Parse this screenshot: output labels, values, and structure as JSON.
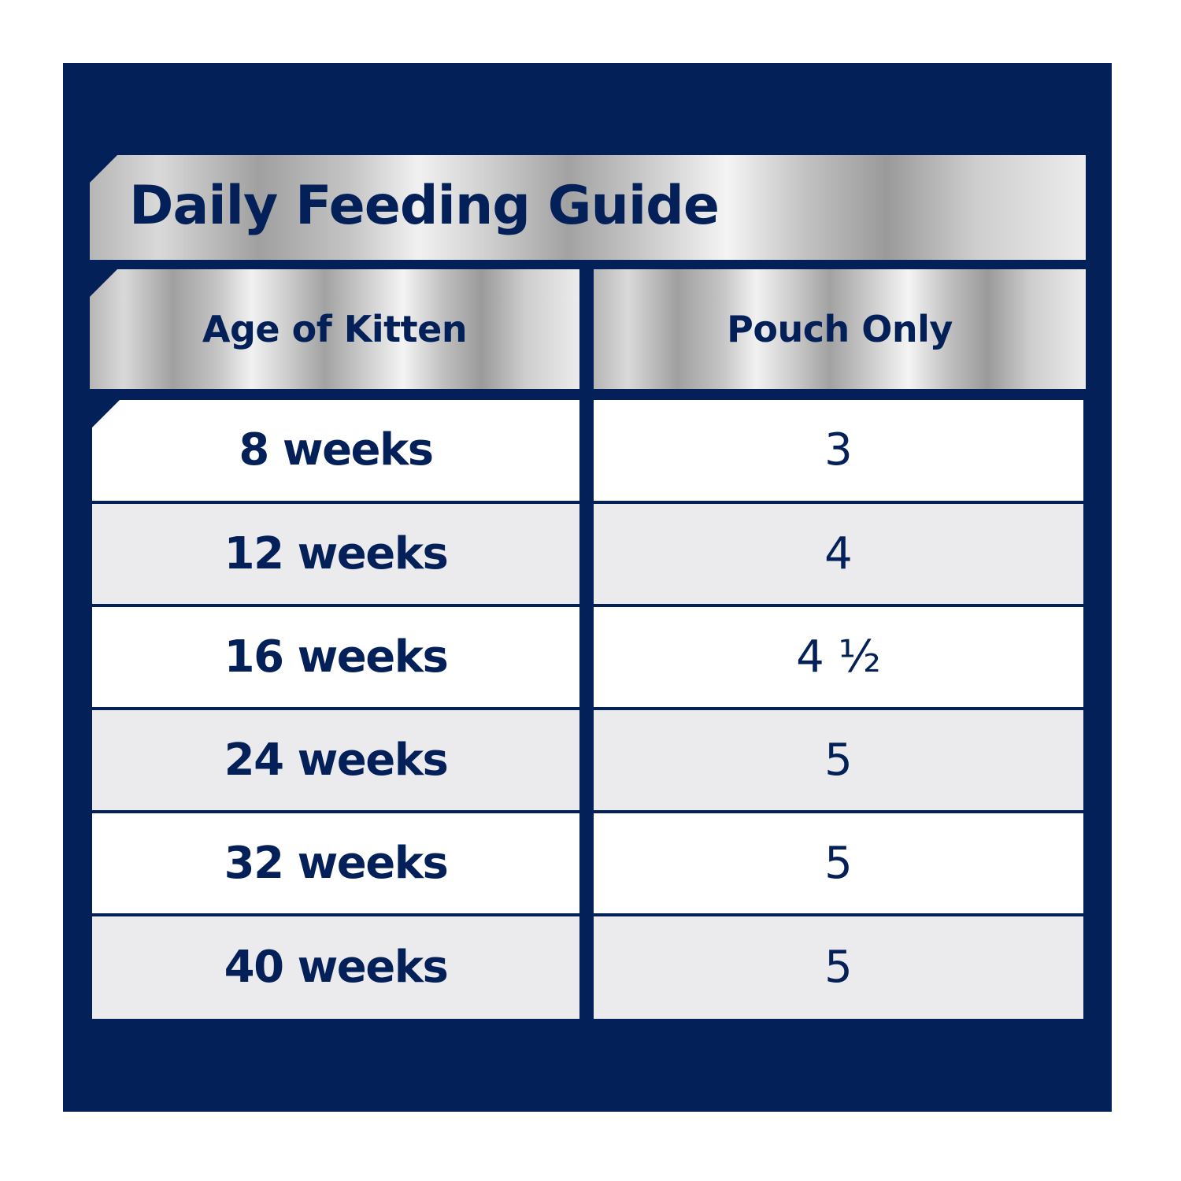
{
  "title": "Daily Feeding Guide",
  "headers": {
    "age": "Age of Kitten",
    "amount": "Pouch Only"
  },
  "rows": [
    {
      "age": "8 weeks",
      "amount": "3"
    },
    {
      "age": "12 weeks",
      "amount": "4"
    },
    {
      "age": "16 weeks",
      "amount": "4 ½"
    },
    {
      "age": "24 weeks",
      "amount": "5"
    },
    {
      "age": "32 weeks",
      "amount": "5"
    },
    {
      "age": "40 weeks",
      "amount": "5"
    }
  ],
  "colors": {
    "navy": "#032058",
    "row_light": "#ffffff",
    "row_grey": "#ebebee"
  }
}
